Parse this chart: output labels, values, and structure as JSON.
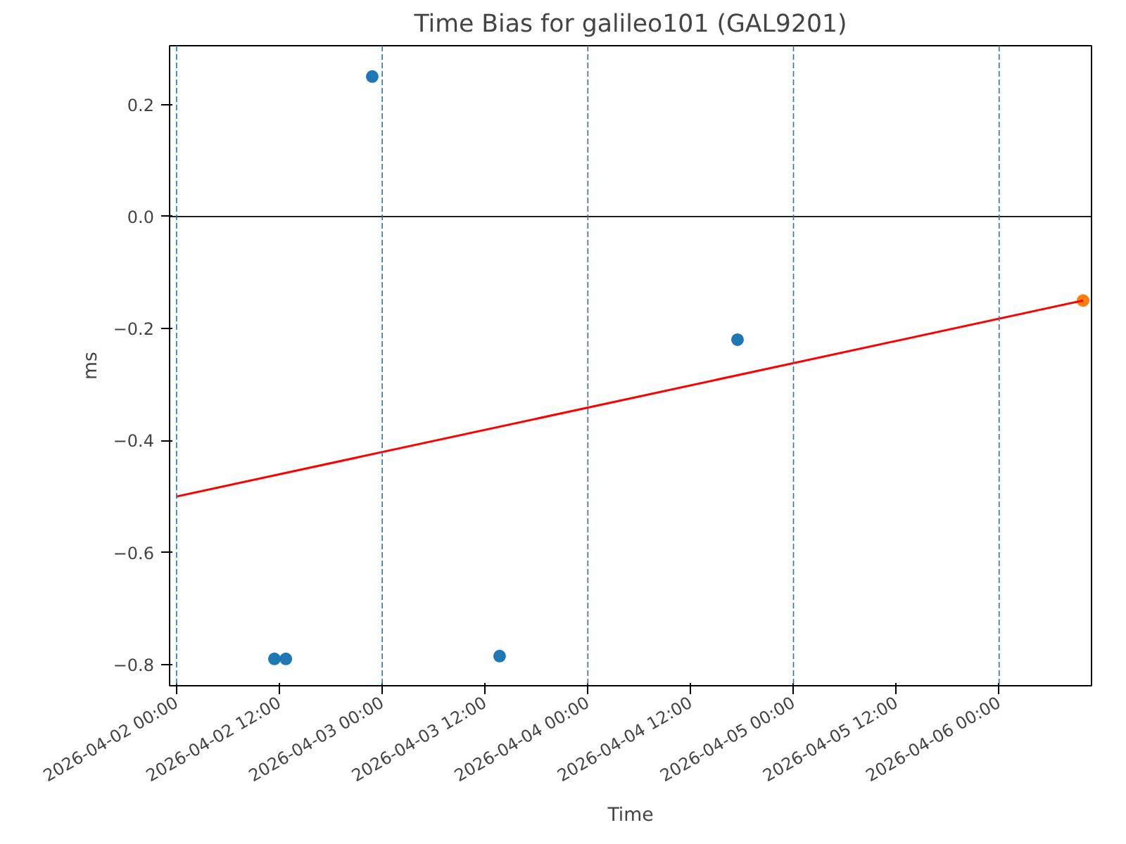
{
  "chart_data": {
    "type": "scatter",
    "title": "Time Bias for galileo101 (GAL9201)",
    "xlabel": "Time",
    "ylabel": "ms",
    "series": [
      {
        "color": "#1f77b4",
        "x": [
          "2026-04-02T11:25",
          "2026-04-02T12:45",
          "2026-04-02T22:50",
          "2026-04-03T13:42",
          "2026-04-04T17:28"
        ],
        "values": [
          -0.79,
          -0.79,
          0.25,
          -0.785,
          -0.22
        ]
      },
      {
        "type": "scatter",
        "color": "#ff7f0e",
        "x": [
          "2026-04-06T09:48"
        ],
        "values": [
          -0.15
        ]
      },
      {
        "type": "line",
        "marker": "none",
        "color": "#ff0000",
        "x": [
          "2026-04-02T00:00",
          "2026-04-06T09:48"
        ],
        "values": [
          -0.5,
          -0.15
        ]
      }
    ],
    "xlim": [
      "2026-04-01T23:11",
      "2026-04-06T10:47"
    ],
    "ylim": [
      -0.838,
      0.305
    ],
    "xticks": [
      {
        "value": "2026-04-02T00:00",
        "label": "2026-04-02 00:00"
      },
      {
        "value": "2026-04-02T12:00",
        "label": "2026-04-02 12:00"
      },
      {
        "value": "2026-04-03T00:00",
        "label": "2026-04-03 00:00"
      },
      {
        "value": "2026-04-03T12:00",
        "label": "2026-04-03 12:00"
      },
      {
        "value": "2026-04-04T00:00",
        "label": "2026-04-04 00:00"
      },
      {
        "value": "2026-04-04T12:00",
        "label": "2026-04-04 12:00"
      },
      {
        "value": "2026-04-05T00:00",
        "label": "2026-04-05 00:00"
      },
      {
        "value": "2026-04-05T12:00",
        "label": "2026-04-05 12:00"
      },
      {
        "value": "2026-04-06T00:00",
        "label": "2026-04-06 00:00"
      }
    ],
    "yticks": [
      {
        "value": -0.8,
        "label": "−0.8"
      },
      {
        "value": -0.6,
        "label": "−0.6"
      },
      {
        "value": -0.4,
        "label": "−0.4"
      },
      {
        "value": -0.2,
        "label": "−0.2"
      },
      {
        "value": 0,
        "label": "0.0"
      },
      {
        "value": 0.2,
        "label": "0.2"
      }
    ],
    "ref_lines": [
      {
        "axis": "y",
        "value": 0,
        "color": "#000000",
        "line_style": "solid"
      },
      {
        "axis": "x",
        "value": "2026-04-02T00:00",
        "color": "#1f77b4",
        "line_style": "dashed"
      },
      {
        "axis": "x",
        "value": "2026-04-03T00:00",
        "color": "#1f77b4",
        "line_style": "dashed"
      },
      {
        "axis": "x",
        "value": "2026-04-04T00:00",
        "color": "#1f77b4",
        "line_style": "dashed"
      },
      {
        "axis": "x",
        "value": "2026-04-05T00:00",
        "color": "#1f77b4",
        "line_style": "dashed"
      },
      {
        "axis": "x",
        "value": "2026-04-06T00:00",
        "color": "#1f77b4",
        "line_style": "dashed"
      }
    ],
    "marker": "circle",
    "grid": false
  }
}
